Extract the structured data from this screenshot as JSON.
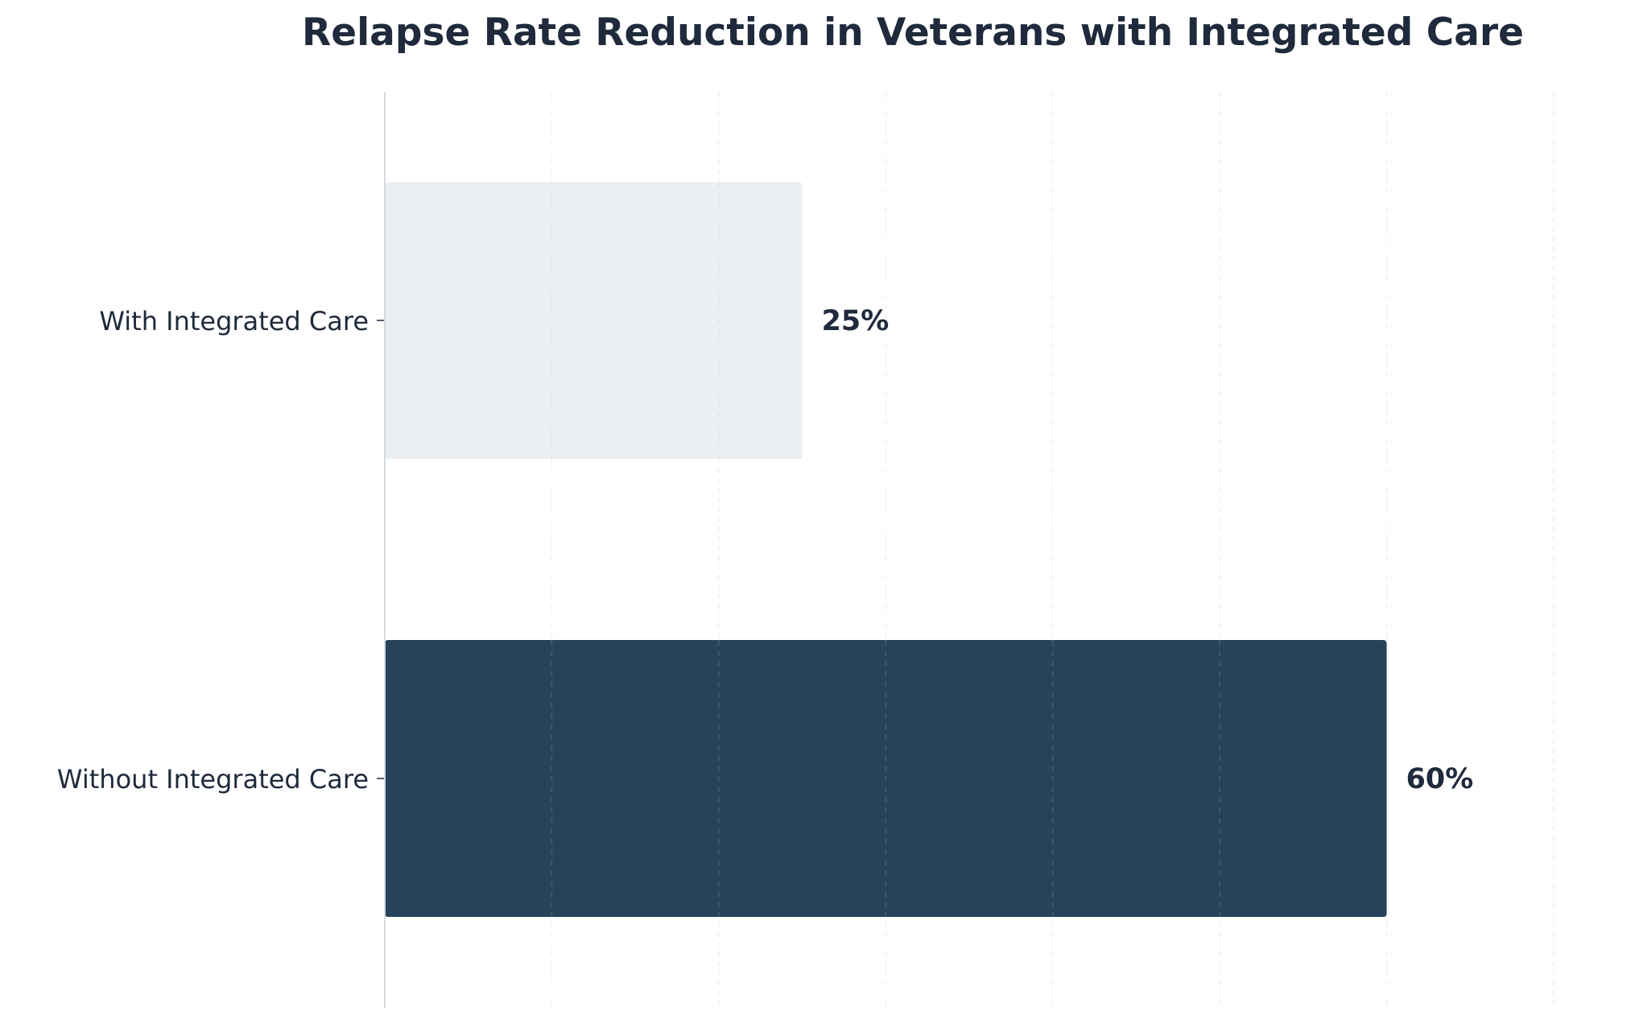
{
  "chart_data": {
    "type": "bar",
    "orientation": "horizontal",
    "title": "Relapse Rate Reduction in Veterans with Integrated Care",
    "xlabel": "",
    "ylabel": "",
    "categories": [
      "With Integrated Care",
      "Without Integrated Care"
    ],
    "values": [
      25,
      60
    ],
    "value_labels": [
      "25%",
      "60%"
    ],
    "xlim": [
      0,
      70
    ],
    "x_gridlines": [
      10,
      20,
      30,
      40,
      50,
      60,
      70
    ],
    "grid": true,
    "legend": "none",
    "colors": {
      "title": "#1f2a3c",
      "text": "#1f2a3c",
      "bar_with": "#eceff2",
      "bar_without": "#27435b",
      "axis": "#d5dbe3",
      "grid": "#c8d0da",
      "grid_on_bar": "#44607a"
    }
  }
}
